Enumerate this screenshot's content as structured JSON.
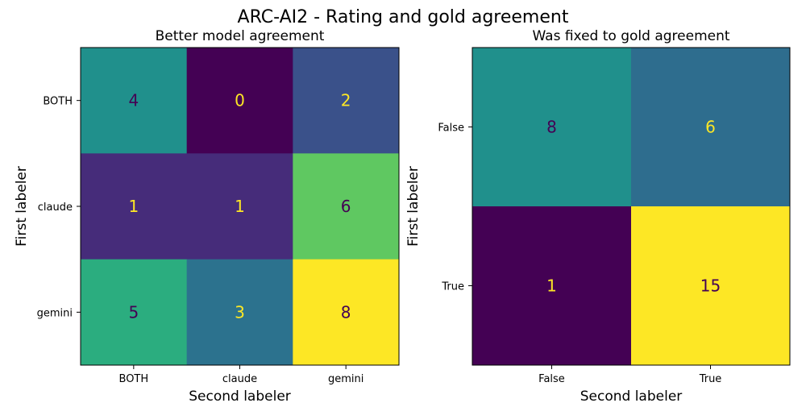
{
  "figure": {
    "title": "ARC-AI2 - Rating and gold agreement"
  },
  "chart_data": [
    {
      "type": "heatmap",
      "title": "Better model agreement",
      "xlabel": "Second labeler",
      "ylabel": "First labeler",
      "x_categories": [
        "BOTH",
        "claude",
        "gemini"
      ],
      "y_categories": [
        "BOTH",
        "claude",
        "gemini"
      ],
      "values": [
        [
          4,
          0,
          2
        ],
        [
          1,
          1,
          6
        ],
        [
          5,
          3,
          8
        ]
      ],
      "colormap": "viridis",
      "vmin": 0,
      "vmax": 8
    },
    {
      "type": "heatmap",
      "title": "Was fixed to gold agreement",
      "xlabel": "Second labeler",
      "ylabel": "First labeler",
      "x_categories": [
        "False",
        "True"
      ],
      "y_categories": [
        "False",
        "True"
      ],
      "values": [
        [
          8,
          6
        ],
        [
          1,
          15
        ]
      ],
      "colormap": "viridis",
      "vmin": 1,
      "vmax": 15
    }
  ]
}
